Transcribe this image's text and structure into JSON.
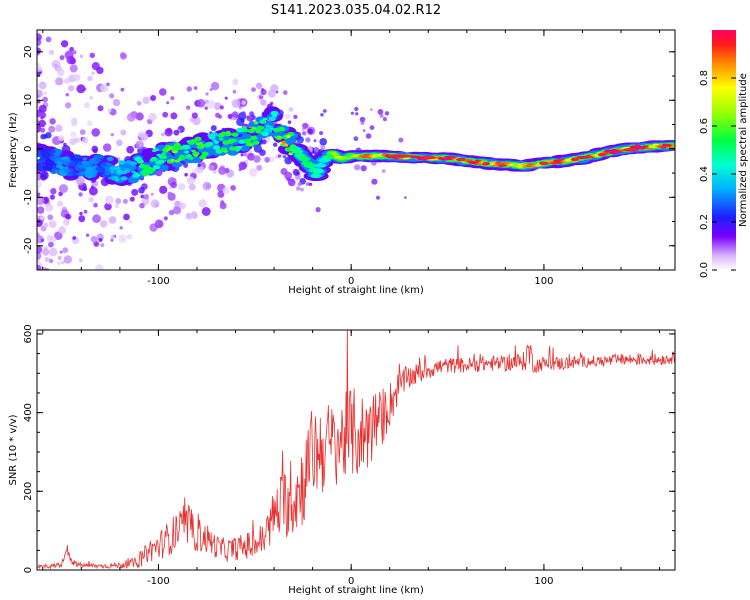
{
  "title": "S141.2023.035.04.02.R12",
  "colors": {
    "snr_line": "#e8302e",
    "ridge_core": "#e8253a",
    "background": "#ffffff",
    "axis": "#000000"
  },
  "chart_data": [
    {
      "type": "heatmap",
      "name": "spectrogram",
      "xlabel": "Height of straight line (km)",
      "ylabel": "Frequency (Hz)",
      "xlim": [
        -163,
        168
      ],
      "ylim": [
        -25,
        24.5
      ],
      "xticks": [
        -100,
        0,
        100
      ],
      "yticks": [
        -20,
        -10,
        0,
        10,
        20
      ],
      "grid": false,
      "colorbar": {
        "label": "Normalized spectral amplitude",
        "range": [
          0,
          1
        ],
        "ticks": [
          0.0,
          0.2,
          0.4,
          0.6,
          0.8
        ],
        "tick_labels": [
          "0.0",
          "0.2",
          "0.4",
          "0.6",
          "0.8"
        ]
      },
      "ridge": {
        "x": [
          -163,
          -150,
          -140,
          -130,
          -120,
          -110,
          -100,
          -90,
          -80,
          -70,
          -60,
          -50,
          -45,
          -40,
          -37,
          -35,
          -30,
          -25,
          -20,
          -18,
          -15,
          -10,
          -5,
          0,
          10,
          20,
          30,
          40,
          50,
          60,
          70,
          80,
          90,
          100,
          110,
          120,
          130,
          140,
          150,
          160,
          168
        ],
        "y": [
          -1.5,
          -3,
          -4,
          -3.5,
          -5,
          -4,
          -2,
          -1,
          0,
          1,
          1.5,
          3,
          4.5,
          6,
          3,
          2.5,
          0.5,
          -2,
          -4,
          -5.5,
          -2.5,
          -1,
          -2,
          -1.5,
          -1.5,
          -1.5,
          -1.8,
          -1.8,
          -2,
          -2.5,
          -3,
          -3.3,
          -3.5,
          -3,
          -2.5,
          -2,
          -1,
          -0.2,
          0.3,
          0.5,
          0.6
        ],
        "intensity": [
          0.25,
          0.3,
          0.3,
          0.3,
          0.35,
          0.45,
          0.55,
          0.6,
          0.55,
          0.5,
          0.55,
          0.55,
          0.5,
          0.45,
          0.6,
          0.8,
          0.65,
          0.5,
          0.45,
          0.45,
          0.5,
          0.6,
          0.65,
          0.75,
          0.85,
          0.9,
          0.95,
          0.95,
          0.92,
          0.9,
          0.85,
          0.85,
          0.8,
          0.85,
          0.88,
          0.9,
          0.93,
          0.97,
          1.0,
          0.9,
          0.85
        ]
      }
    },
    {
      "type": "line",
      "name": "snr",
      "xlabel": "Height of straight line (km)",
      "ylabel": "SNR (10 * v/v)",
      "xlim": [
        -163,
        168
      ],
      "ylim": [
        0,
        610
      ],
      "xticks": [
        -100,
        0,
        100
      ],
      "yticks": [
        0,
        200,
        400,
        600
      ],
      "grid": false,
      "series": [
        {
          "name": "SNR",
          "x": [
            -163,
            -155,
            -150,
            -148,
            -145,
            -140,
            -130,
            -120,
            -110,
            -105,
            -100,
            -95,
            -90,
            -85,
            -80,
            -75,
            -70,
            -65,
            -60,
            -55,
            -50,
            -45,
            -40,
            -35,
            -30,
            -25,
            -20,
            -15,
            -10,
            -5,
            0,
            5,
            10,
            15,
            20,
            25,
            30,
            40,
            50,
            60,
            70,
            80,
            90,
            92,
            95,
            100,
            110,
            120,
            130,
            140,
            150,
            160,
            168
          ],
          "values": [
            8,
            10,
            15,
            55,
            18,
            12,
            10,
            12,
            20,
            50,
            60,
            80,
            100,
            110,
            90,
            80,
            60,
            50,
            55,
            60,
            65,
            80,
            140,
            170,
            180,
            220,
            300,
            310,
            320,
            330,
            350,
            340,
            360,
            380,
            420,
            470,
            490,
            510,
            520,
            520,
            525,
            525,
            530,
            560,
            520,
            525,
            525,
            530,
            530,
            535,
            535,
            535,
            540
          ],
          "noise": [
            6,
            6,
            8,
            10,
            8,
            6,
            6,
            8,
            15,
            30,
            35,
            45,
            50,
            50,
            45,
            40,
            30,
            30,
            30,
            35,
            40,
            45,
            70,
            90,
            100,
            110,
            120,
            120,
            110,
            110,
            120,
            110,
            100,
            80,
            60,
            40,
            30,
            25,
            20,
            20,
            20,
            20,
            25,
            45,
            20,
            18,
            18,
            15,
            15,
            15,
            15,
            15,
            15
          ]
        }
      ]
    }
  ]
}
